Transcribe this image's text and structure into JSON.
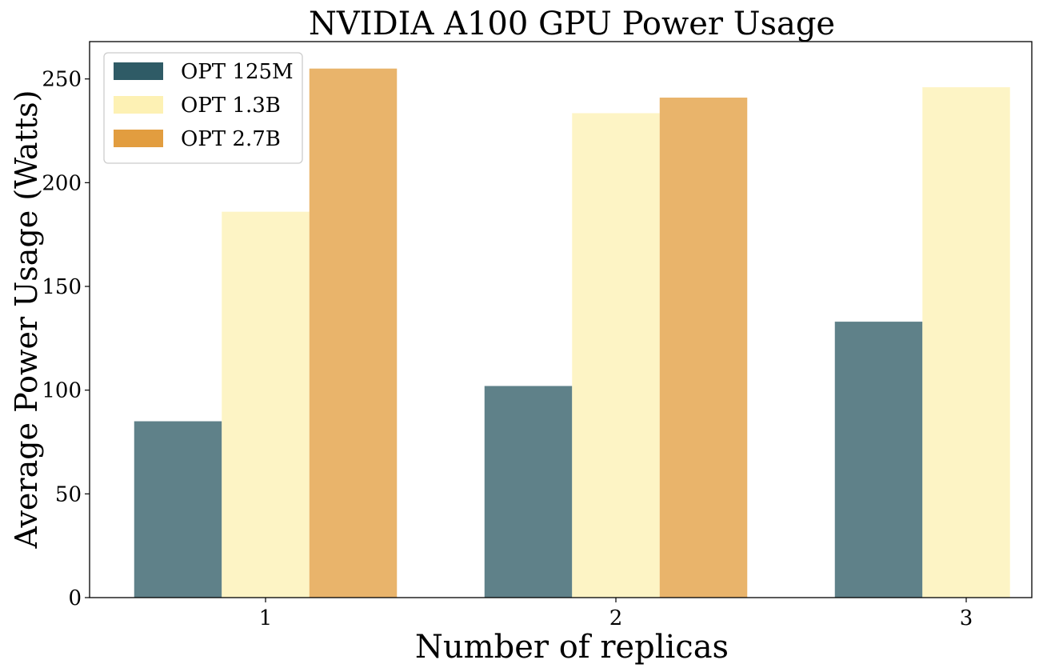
{
  "chart_data": {
    "type": "bar",
    "title": "NVIDIA A100 GPU Power Usage",
    "xlabel": "Number of replicas",
    "ylabel": "Average Power Usage (Watts)",
    "categories": [
      "1",
      "2",
      "3"
    ],
    "ylim": [
      0,
      268
    ],
    "yticks": [
      0,
      50,
      100,
      150,
      200,
      250
    ],
    "grid": false,
    "legend_position": "top-left",
    "series": [
      {
        "name": "OPT 125M",
        "color": "#2f5b66",
        "values": [
          85,
          102,
          133
        ]
      },
      {
        "name": "OPT 1.3B",
        "color": "#fdf1b4",
        "values": [
          186,
          233.5,
          246
        ]
      },
      {
        "name": "OPT 2.7B",
        "color": "#e29d3f",
        "values": [
          255,
          241,
          null
        ]
      }
    ],
    "bar_opacity": 0.77
  }
}
